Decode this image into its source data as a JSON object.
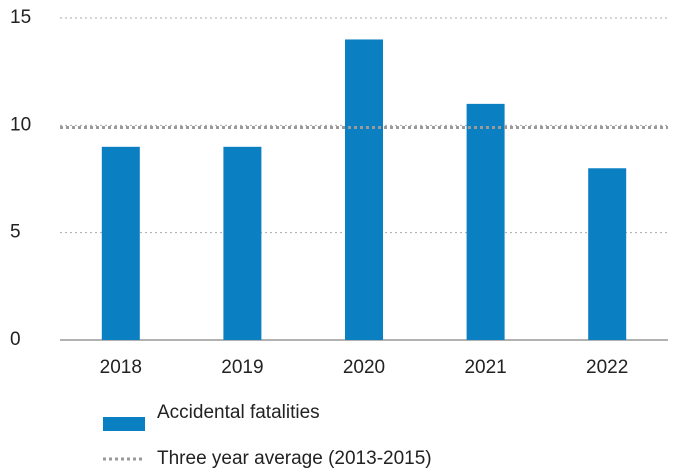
{
  "chart_data": {
    "type": "bar",
    "categories": [
      "2018",
      "2019",
      "2020",
      "2021",
      "2022"
    ],
    "series": [
      {
        "name": "Accidental fatalities",
        "color": "#0a7fc2",
        "values": [
          9,
          9,
          14,
          11,
          8
        ]
      }
    ],
    "reference_line": {
      "name": "Three year average (2013-2015)",
      "value": 9.9,
      "color": "#9a9a9a"
    },
    "ylim": [
      0,
      15
    ],
    "yticks": [
      0,
      5,
      10,
      15
    ],
    "grid": true
  }
}
